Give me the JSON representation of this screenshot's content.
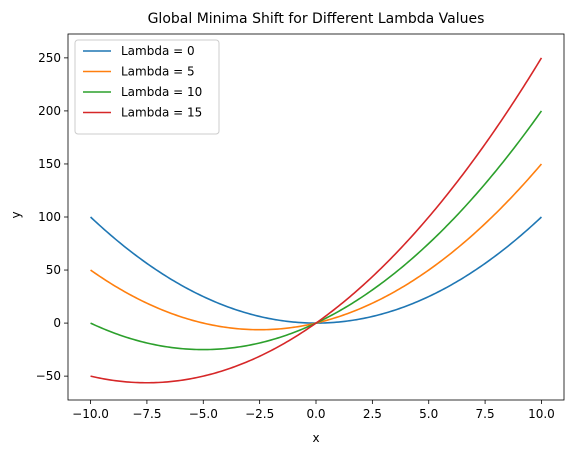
{
  "chart_data": {
    "type": "line",
    "title": "Global Minima Shift for Different Lambda Values",
    "xlabel": "x",
    "ylabel": "y",
    "xlim": [
      -11.0,
      11.0
    ],
    "ylim": [
      -72.5,
      272.5
    ],
    "x_ticks": [
      -10,
      -7.5,
      -5,
      -2.5,
      0,
      2.5,
      5,
      7.5,
      10
    ],
    "x_tick_labels": [
      "−10.0",
      "−7.5",
      "−5.0",
      "−2.5",
      "0.0",
      "2.5",
      "5.0",
      "7.5",
      "10.0"
    ],
    "y_ticks": [
      -50,
      0,
      50,
      100,
      150,
      200,
      250
    ],
    "y_tick_labels": [
      "−50",
      "0",
      "50",
      "100",
      "150",
      "200",
      "250"
    ],
    "grid": false,
    "legend_position": "top-left",
    "formula": "y = x^2 + lambda * x",
    "x": [
      -10,
      -9,
      -8,
      -7,
      -6,
      -5,
      -4,
      -3,
      -2,
      -1,
      0,
      1,
      2,
      3,
      4,
      5,
      6,
      7,
      8,
      9,
      10
    ],
    "series": [
      {
        "name": "Lambda = 0",
        "lambda": 0,
        "color": "#1f77b4",
        "values": [
          100,
          81,
          64,
          49,
          36,
          25,
          16,
          9,
          4,
          1,
          0,
          1,
          4,
          9,
          16,
          25,
          36,
          49,
          64,
          81,
          100
        ]
      },
      {
        "name": "Lambda = 5",
        "lambda": 5,
        "color": "#ff7f0e",
        "values": [
          50,
          36,
          24,
          14,
          6,
          0,
          -4,
          -6,
          -6,
          -4,
          0,
          6,
          14,
          24,
          36,
          50,
          66,
          84,
          104,
          126,
          150
        ]
      },
      {
        "name": "Lambda = 10",
        "lambda": 10,
        "color": "#2ca02c",
        "values": [
          0,
          -9,
          -16,
          -21,
          -24,
          -25,
          -24,
          -21,
          -16,
          -9,
          0,
          11,
          24,
          39,
          56,
          75,
          96,
          119,
          144,
          171,
          200
        ]
      },
      {
        "name": "Lambda = 15",
        "lambda": 15,
        "color": "#d62728",
        "values": [
          -50,
          -54,
          -56,
          -56,
          -54,
          -50,
          -44,
          -36,
          -26,
          -14,
          0,
          16,
          34,
          54,
          76,
          100,
          126,
          154,
          184,
          216,
          250
        ]
      }
    ]
  }
}
